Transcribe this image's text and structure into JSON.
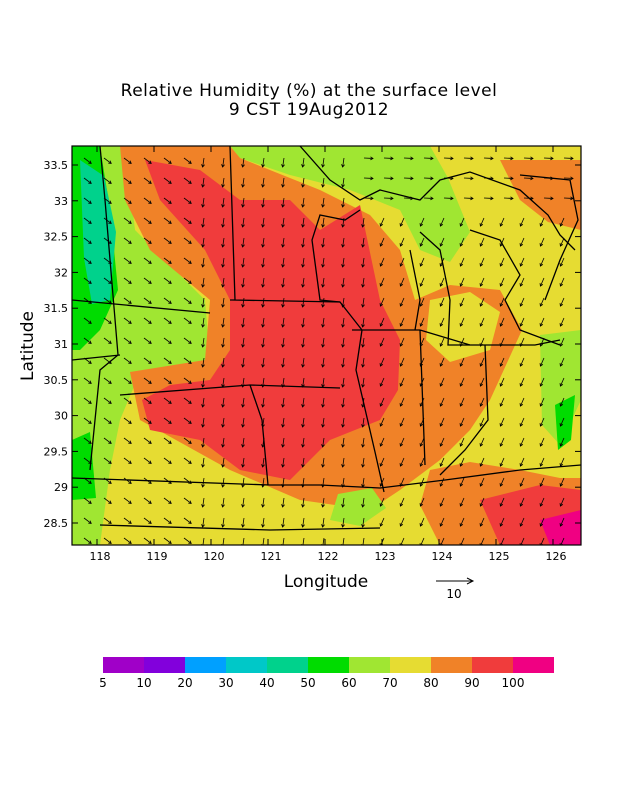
{
  "title": "Relative Humidity (%) at the surface level",
  "subtitle": "9 CST 19Aug2012",
  "xlabel": "Longitude",
  "ylabel": "Latitude",
  "x_ticks": [
    "118",
    "119",
    "120",
    "121",
    "122",
    "123",
    "124",
    "125",
    "126"
  ],
  "y_ticks": [
    "33.5",
    "33",
    "32.5",
    "32",
    "31.5",
    "31",
    "30.5",
    "30",
    "29.5",
    "29",
    "28.5"
  ],
  "vector_reference": {
    "label": "10"
  },
  "colorbar": {
    "labels": [
      "5",
      "10",
      "20",
      "30",
      "40",
      "50",
      "60",
      "70",
      "80",
      "90",
      "100"
    ],
    "colors": [
      "#a000c8",
      "#8200dc",
      "#00a0ff",
      "#00c8c8",
      "#00d28c",
      "#00dc00",
      "#a0e632",
      "#e6dc32",
      "#f08228",
      "#f03c3c",
      "#f00082"
    ]
  },
  "chart_data": {
    "type": "heatmap",
    "variable": "Relative Humidity (%)",
    "xlim": [
      117.6,
      126.1
    ],
    "ylim": [
      28.17,
      33.8
    ],
    "levels": [
      5,
      10,
      20,
      30,
      40,
      50,
      60,
      70,
      80,
      90,
      100
    ],
    "overlay": "wind vectors"
  }
}
